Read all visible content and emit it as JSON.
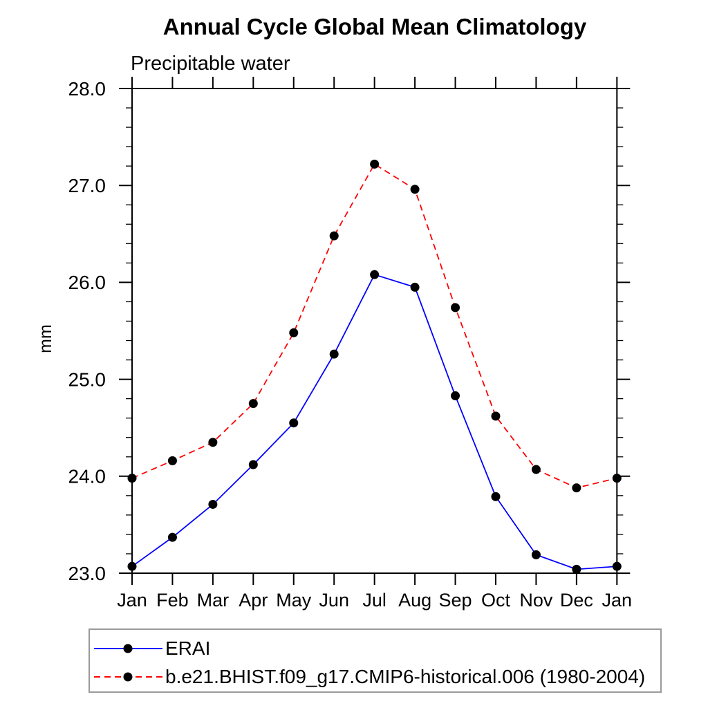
{
  "chart_data": {
    "type": "line",
    "title": "Annual Cycle Global Mean Climatology",
    "subtitle": "Precipitable water",
    "xlabel": "",
    "ylabel": "mm",
    "categories": [
      "Jan",
      "Feb",
      "Mar",
      "Apr",
      "May",
      "Jun",
      "Jul",
      "Aug",
      "Sep",
      "Oct",
      "Nov",
      "Dec",
      "Jan"
    ],
    "ylim": [
      23.0,
      28.0
    ],
    "ytick_major_interval": 1.0,
    "ytick_minor_interval": 0.2,
    "ytick_labels": [
      "23.0",
      "24.0",
      "25.0",
      "26.0",
      "27.0",
      "28.0"
    ],
    "grid": false,
    "frame": "box-with-outside-ticks",
    "legend_position": "bottom-left-boxed",
    "axis_color": "#000000",
    "legend_border_color": "#9a9a9a",
    "series": [
      {
        "name": "ERAI",
        "color": "#0000ff",
        "line_style": "solid",
        "marker": "filled-circle",
        "marker_color": "#000000",
        "values": [
          23.07,
          23.37,
          23.71,
          24.12,
          24.55,
          25.26,
          26.08,
          25.95,
          24.83,
          23.79,
          23.19,
          23.04,
          23.07
        ]
      },
      {
        "name": "b.e21.BHIST.f09_g17.CMIP6-historical.006 (1980-2004)",
        "color": "#ff0000",
        "line_style": "dashed",
        "marker": "filled-circle",
        "marker_color": "#000000",
        "values": [
          23.98,
          24.16,
          24.35,
          24.75,
          25.48,
          26.48,
          27.22,
          26.96,
          25.74,
          24.62,
          24.07,
          23.88,
          23.98
        ]
      }
    ]
  }
}
